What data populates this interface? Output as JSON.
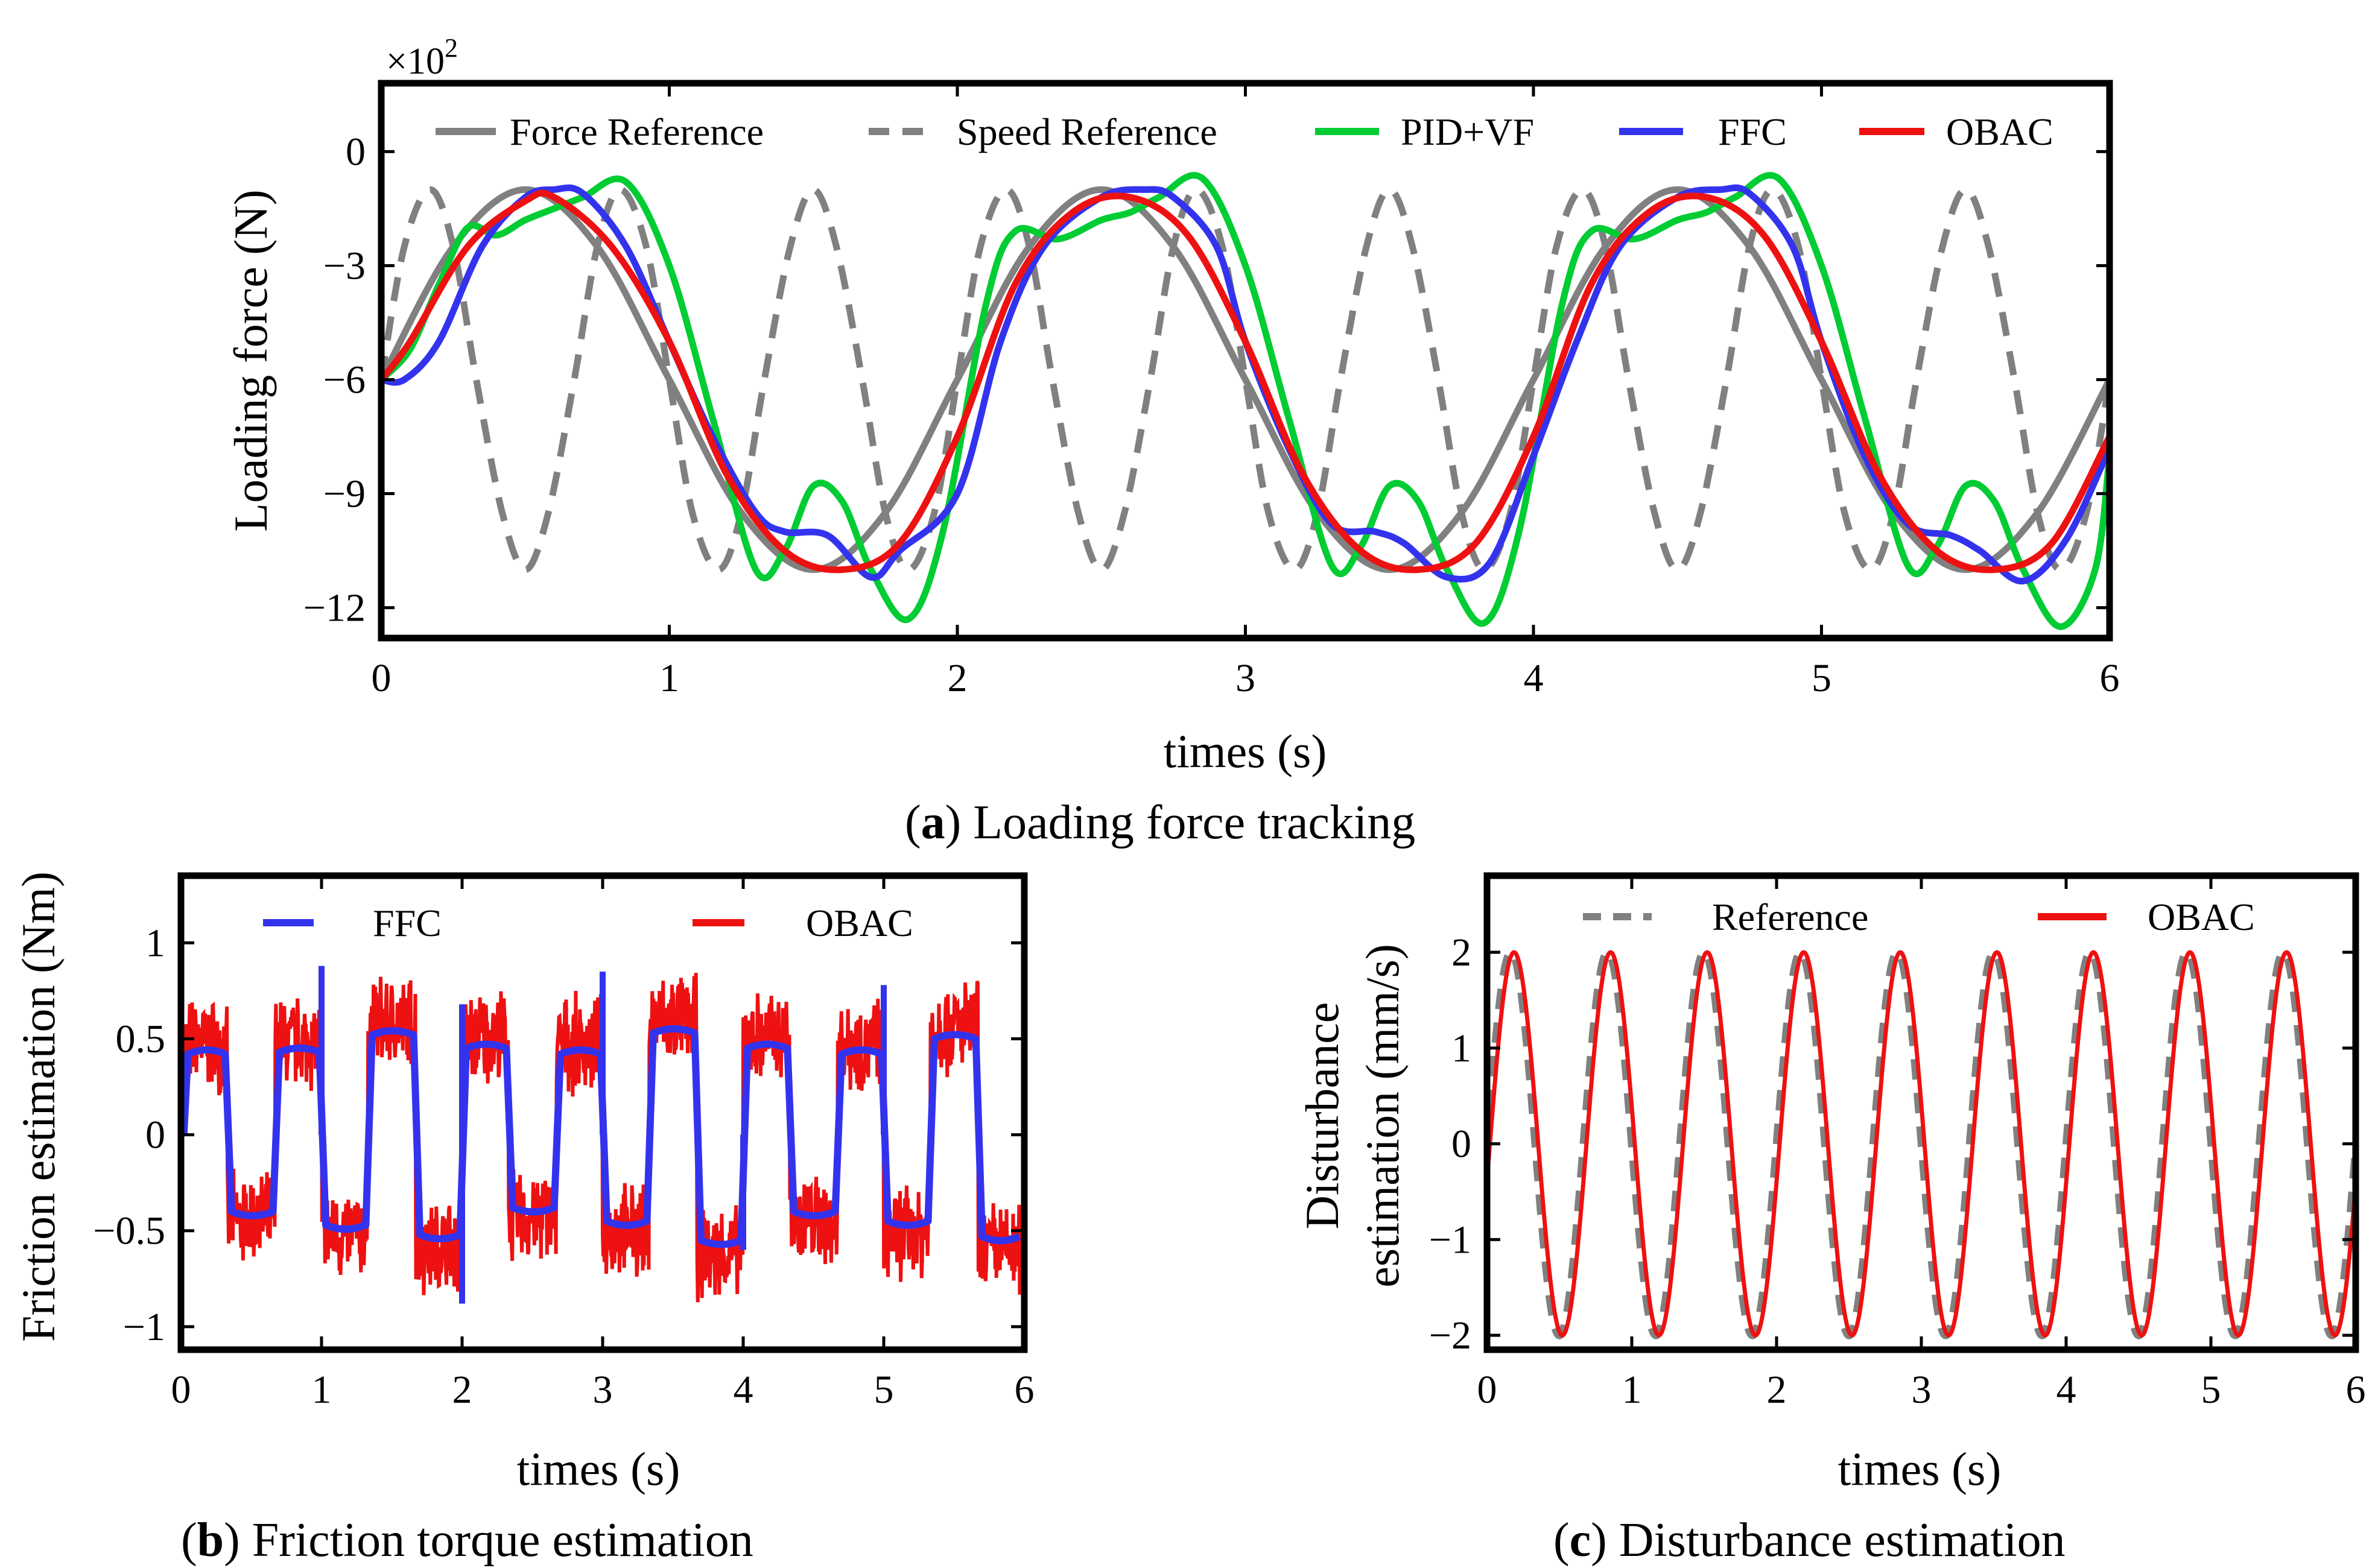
{
  "figure": {
    "captions": [
      {
        "label": "a",
        "text": ") Loading force tracking"
      },
      {
        "label": "b",
        "text": ") Friction torque estimation"
      },
      {
        "label": "c",
        "text": ") Disturbance estimation"
      }
    ]
  },
  "chart_data": [
    {
      "id": "a",
      "type": "line",
      "title": "Loading force tracking",
      "xlabel": "times (s)",
      "ylabel": "Loading force (N)",
      "y_multiplier": "×10",
      "y_multiplier_exp": "2",
      "xlim": [
        0,
        6
      ],
      "ylim": [
        -12.8,
        1.8
      ],
      "xticks": [
        0,
        1,
        2,
        3,
        4,
        5,
        6
      ],
      "xtick_labels": [
        "0",
        "1",
        "2",
        "3",
        "4",
        "5",
        "6"
      ],
      "yticks": [
        0,
        -3,
        -6,
        -9,
        -12
      ],
      "ytick_labels": [
        "0",
        "−3",
        "−6",
        "−9",
        "−12"
      ],
      "legend_position": "top",
      "series": [
        {
          "name": "Force Reference",
          "color": "#808080",
          "style": "solid",
          "x": [
            0,
            0.25,
            0.5,
            0.75,
            1,
            1.25,
            1.5,
            1.75,
            2,
            2.25,
            2.5,
            2.75,
            3,
            3.25,
            3.5,
            3.75,
            4,
            4.25,
            4.5,
            4.75,
            5,
            5.25,
            5.5,
            5.75,
            6
          ],
          "y": [
            -6,
            -2.5,
            -1,
            -2.5,
            -6,
            -9.5,
            -11,
            -9.5,
            -6,
            -2.5,
            -1,
            -2.5,
            -6,
            -9.5,
            -11,
            -9.5,
            -6,
            -2.5,
            -1,
            -2.5,
            -6,
            -9.5,
            -11,
            -9.5,
            -6
          ]
        },
        {
          "name": "Speed Reference",
          "color": "#808080",
          "style": "dashed",
          "x": [
            0,
            0.08,
            0.17,
            0.25,
            0.33,
            0.42,
            0.5,
            0.58,
            0.67,
            0.75,
            0.83,
            0.92,
            1,
            1.08,
            1.17,
            1.25,
            1.33,
            1.42,
            1.5,
            1.58,
            1.67,
            1.75,
            1.83,
            1.92,
            2,
            2.08,
            2.17,
            2.25,
            2.33,
            2.42,
            2.5,
            2.58,
            2.67,
            2.75,
            2.83,
            2.92,
            3,
            3.08,
            3.17,
            3.25,
            3.33,
            3.42,
            3.5,
            3.58,
            3.67,
            3.75,
            3.83,
            3.92,
            4,
            4.08,
            4.17,
            4.25,
            4.33,
            4.42,
            4.5,
            4.58,
            4.67,
            4.75,
            4.83,
            4.92,
            5,
            5.08,
            5.17,
            5.25,
            5.33,
            5.42,
            5.5,
            5.58,
            5.67,
            5.75,
            5.83,
            5.92,
            6
          ],
          "y": [
            -6,
            -2.5,
            -1,
            -2.5,
            -6,
            -9.5,
            -11,
            -9.5,
            -6,
            -2.5,
            -1,
            -2.5,
            -6,
            -9.5,
            -11,
            -9.5,
            -6,
            -2.5,
            -1,
            -2.5,
            -6,
            -9.5,
            -11,
            -9.5,
            -6,
            -2.5,
            -1,
            -2.5,
            -6,
            -9.5,
            -11,
            -9.5,
            -6,
            -2.5,
            -1,
            -2.5,
            -6,
            -9.5,
            -11,
            -9.5,
            -6,
            -2.5,
            -1,
            -2.5,
            -6,
            -9.5,
            -11,
            -9.5,
            -6,
            -2.5,
            -1,
            -2.5,
            -6,
            -9.5,
            -11,
            -9.5,
            -6,
            -2.5,
            -1,
            -2.5,
            -6,
            -9.5,
            -11,
            -9.5,
            -6,
            -2.5,
            -1,
            -2.5,
            -6,
            -9.5,
            -11,
            -9.5,
            -6
          ]
        },
        {
          "name": "PID+VF",
          "color": "#00cc33",
          "style": "solid",
          "x": [
            0,
            0.1,
            0.2,
            0.3,
            0.4,
            0.5,
            0.6,
            0.7,
            0.85,
            1,
            1.15,
            1.3,
            1.4,
            1.5,
            1.6,
            1.7,
            1.83,
            1.95,
            2.1,
            2.2,
            2.35,
            2.5,
            2.6,
            2.7,
            2.85,
            3,
            3.15,
            3.3,
            3.4,
            3.5,
            3.6,
            3.7,
            3.83,
            3.95,
            4.1,
            4.2,
            4.35,
            4.5,
            4.6,
            4.7,
            4.85,
            5,
            5.15,
            5.3,
            5.4,
            5.5,
            5.6,
            5.7,
            5.83,
            5.95,
            6
          ],
          "y": [
            -6,
            -5.2,
            -3.5,
            -2,
            -2.2,
            -1.8,
            -1.5,
            -1.2,
            -0.8,
            -3,
            -7,
            -11,
            -10.5,
            -8.8,
            -9.2,
            -11,
            -12.3,
            -10,
            -4,
            -2.1,
            -2.3,
            -1.8,
            -1.6,
            -1.2,
            -0.7,
            -3,
            -7,
            -10.9,
            -10.4,
            -8.8,
            -9.2,
            -11,
            -12.4,
            -10,
            -4,
            -2.1,
            -2.3,
            -1.8,
            -1.6,
            -1.2,
            -0.7,
            -3,
            -7,
            -10.9,
            -10.4,
            -8.8,
            -9.2,
            -11,
            -12.5,
            -11,
            -8
          ]
        },
        {
          "name": "FFC",
          "color": "#3333ee",
          "style": "solid",
          "x": [
            0,
            0.08,
            0.2,
            0.35,
            0.5,
            0.6,
            0.7,
            0.85,
            1,
            1.15,
            1.3,
            1.4,
            1.55,
            1.7,
            1.8,
            2,
            2.15,
            2.3,
            2.5,
            2.65,
            2.75,
            2.9,
            3,
            3.15,
            3.3,
            3.45,
            3.55,
            3.7,
            3.85,
            4,
            4.15,
            4.3,
            4.5,
            4.65,
            4.75,
            4.9,
            5,
            5.15,
            5.3,
            5.45,
            5.55,
            5.7,
            5.85,
            6
          ],
          "y": [
            -6,
            -6,
            -5,
            -2.5,
            -1.2,
            -1,
            -1.1,
            -2.5,
            -5,
            -7.5,
            -9.5,
            -10,
            -10.1,
            -11.2,
            -10.5,
            -9,
            -5,
            -2.5,
            -1.2,
            -1,
            -1.2,
            -2.5,
            -5,
            -7.8,
            -9.8,
            -10,
            -10.3,
            -11.2,
            -10.8,
            -8,
            -5,
            -2.5,
            -1.2,
            -1,
            -1.1,
            -2.5,
            -5,
            -8,
            -9.8,
            -10.1,
            -10.5,
            -11.3,
            -10.2,
            -7.8
          ]
        },
        {
          "name": "OBAC",
          "color": "#ee1111",
          "style": "solid",
          "x": [
            0,
            0.1,
            0.3,
            0.5,
            0.6,
            0.8,
            1,
            1.2,
            1.4,
            1.6,
            1.8,
            2,
            2.2,
            2.4,
            2.6,
            2.8,
            3,
            3.2,
            3.4,
            3.6,
            3.8,
            4,
            4.2,
            4.4,
            4.6,
            4.8,
            5,
            5.2,
            5.4,
            5.6,
            5.8,
            6
          ],
          "y": [
            -6,
            -5,
            -2.5,
            -1.3,
            -1.2,
            -2.5,
            -5,
            -8.5,
            -10.5,
            -11,
            -10.3,
            -7.5,
            -3.5,
            -1.6,
            -1.2,
            -2.2,
            -5,
            -8.5,
            -10.5,
            -11,
            -10.3,
            -7.5,
            -3.5,
            -1.6,
            -1.2,
            -2.2,
            -5,
            -8.5,
            -10.5,
            -11,
            -10.3,
            -7.5
          ]
        }
      ]
    },
    {
      "id": "b",
      "type": "line",
      "title": "Friction torque estimation",
      "xlabel": "times (s)",
      "ylabel": "Friction estimation (Nm)",
      "xlim": [
        0,
        6
      ],
      "ylim": [
        -1.12,
        1.35
      ],
      "xticks": [
        0,
        1,
        2,
        3,
        4,
        5,
        6
      ],
      "xtick_labels": [
        "0",
        "1",
        "2",
        "3",
        "4",
        "5",
        "6"
      ],
      "yticks": [
        1,
        0.5,
        0,
        -0.5,
        -1
      ],
      "ytick_labels": [
        "1",
        "0.5",
        "0",
        "−0.5",
        "−1"
      ],
      "legend_position": "top",
      "square_wave_switch_times": [
        0,
        0.33,
        0.67,
        1.0,
        1.67,
        2.0,
        2.67,
        3.0,
        3.67,
        4.0,
        4.67,
        5.0,
        5.67,
        6.0
      ],
      "series": [
        {
          "name": "FFC",
          "color": "#3333ee",
          "style": "solid",
          "segments": [
            {
              "x0": 0.02,
              "x1": 0.33,
              "level": 0.42
            },
            {
              "x0": 0.33,
              "x1": 0.67,
              "level": -0.4
            },
            {
              "x0": 0.67,
              "x1": 1.0,
              "level": 0.43
            },
            {
              "x0": 1.0,
              "x1": 1.33,
              "level": -0.47
            },
            {
              "x0": 1.33,
              "x1": 1.67,
              "level": 0.52
            },
            {
              "x0": 1.67,
              "x1": 2.0,
              "level": -0.52
            },
            {
              "x0": 2.0,
              "x1": 2.33,
              "level": 0.45
            },
            {
              "x0": 2.33,
              "x1": 2.67,
              "level": -0.38
            },
            {
              "x0": 2.67,
              "x1": 3.0,
              "level": 0.42
            },
            {
              "x0": 3.0,
              "x1": 3.33,
              "level": -0.45
            },
            {
              "x0": 3.33,
              "x1": 3.67,
              "level": 0.53
            },
            {
              "x0": 3.67,
              "x1": 4.0,
              "level": -0.55
            },
            {
              "x0": 4.0,
              "x1": 4.33,
              "level": 0.45
            },
            {
              "x0": 4.33,
              "x1": 4.67,
              "level": -0.4
            },
            {
              "x0": 4.67,
              "x1": 5.0,
              "level": 0.42
            },
            {
              "x0": 5.0,
              "x1": 5.33,
              "level": -0.45
            },
            {
              "x0": 5.33,
              "x1": 5.67,
              "level": 0.5
            },
            {
              "x0": 5.67,
              "x1": 5.98,
              "level": -0.53
            }
          ]
        },
        {
          "name": "OBAC",
          "color": "#ee1111",
          "style": "solid",
          "noise_amplitude": 0.2,
          "levels_follow": "FFC"
        }
      ]
    },
    {
      "id": "c",
      "type": "line",
      "title": "Disturbance estimation",
      "xlabel": "times (s)",
      "ylabel": "Disturbance estimation (mm/s)",
      "ylabel_lines": [
        "Disturbance",
        "estimation (mm/s)"
      ],
      "xlim": [
        0,
        6
      ],
      "ylim": [
        -2.15,
        2.8
      ],
      "xticks": [
        0,
        1,
        2,
        3,
        4,
        5,
        6
      ],
      "xtick_labels": [
        "0",
        "1",
        "2",
        "3",
        "4",
        "5",
        "6"
      ],
      "yticks": [
        2,
        1,
        0,
        -1,
        -2
      ],
      "ytick_labels": [
        "2",
        "1",
        "0",
        "−1",
        "−2"
      ],
      "legend_position": "top",
      "series": [
        {
          "name": "Reference",
          "color": "#808080",
          "style": "dashed",
          "function": "2*sin(2*pi*t/0.667)",
          "amplitude": 2,
          "period": 0.667,
          "phase_lag": 0
        },
        {
          "name": "OBAC",
          "color": "#ee1111",
          "style": "solid",
          "function": "2*sin(2*pi*(t-0.02)/0.667)",
          "amplitude": 2,
          "period": 0.667,
          "phase_lag": 0.02
        }
      ]
    }
  ]
}
